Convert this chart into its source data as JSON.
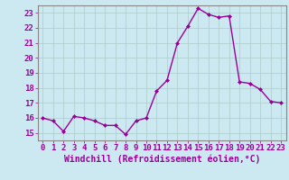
{
  "x": [
    0,
    1,
    2,
    3,
    4,
    5,
    6,
    7,
    8,
    9,
    10,
    11,
    12,
    13,
    14,
    15,
    16,
    17,
    18,
    19,
    20,
    21,
    22,
    23
  ],
  "y": [
    16.0,
    15.8,
    15.1,
    16.1,
    16.0,
    15.8,
    15.5,
    15.5,
    14.9,
    15.8,
    16.0,
    17.8,
    18.5,
    21.0,
    22.1,
    23.3,
    22.9,
    22.7,
    22.8,
    18.4,
    18.3,
    17.9,
    17.1,
    17.0
  ],
  "line_color": "#990099",
  "marker": "D",
  "marker_size": 2.0,
  "bg_color": "#cce8f0",
  "grid_color": "#aacccc",
  "xlabel": "Windchill (Refroidissement éolien,°C)",
  "ylim": [
    14.5,
    23.5
  ],
  "xlim": [
    -0.5,
    23.5
  ],
  "yticks": [
    15,
    16,
    17,
    18,
    19,
    20,
    21,
    22,
    23
  ],
  "xticks": [
    0,
    1,
    2,
    3,
    4,
    5,
    6,
    7,
    8,
    9,
    10,
    11,
    12,
    13,
    14,
    15,
    16,
    17,
    18,
    19,
    20,
    21,
    22,
    23
  ],
  "tick_fontsize": 6.5,
  "xlabel_fontsize": 7.0,
  "line_width": 1.0
}
